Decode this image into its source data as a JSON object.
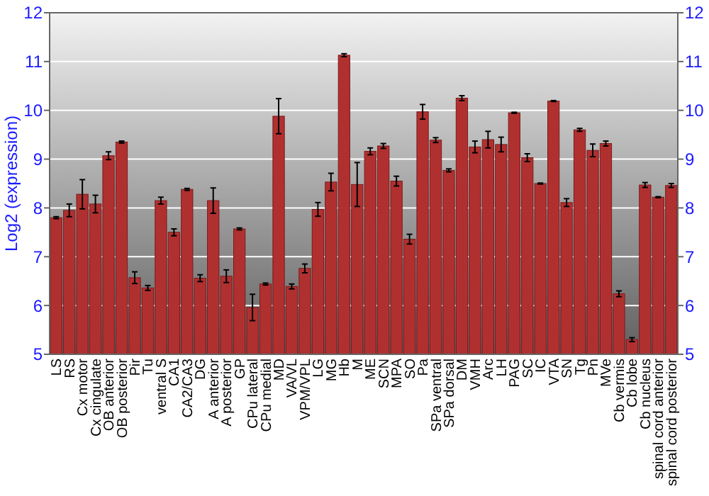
{
  "chart_data": {
    "type": "bar",
    "ylabel": "Log2 (expression)",
    "categories": [
      "LS",
      "RS",
      "Cx motor",
      "Cx cingulate",
      "OB anterior",
      "OB posterior",
      "Pir",
      "Tu",
      "ventral S",
      "CA1",
      "CA2/CA3",
      "DG",
      "A anterior",
      "A posterior",
      "GP",
      "CPu lateral",
      "CPu medial",
      "MD",
      "VA/VL",
      "VPM/VPL",
      "LG",
      "MG",
      "Hb",
      "M",
      "ME",
      "SCN",
      "MPA",
      "SO",
      "Pa",
      "SPa ventral",
      "SPa dorsal",
      "DM",
      "VMH",
      "Arc",
      "LH",
      "PAG",
      "SC",
      "IC",
      "VTA",
      "SN",
      "Tg",
      "Pn",
      "MVe",
      "Cb vermis",
      "Cb lobe",
      "Cb nucleus",
      "spinal cord anterior",
      "spinal cord posterior"
    ],
    "values": [
      7.8,
      7.95,
      8.28,
      8.08,
      9.07,
      9.35,
      6.57,
      6.36,
      8.15,
      7.5,
      8.38,
      6.56,
      8.15,
      6.6,
      7.57,
      5.96,
      6.44,
      9.88,
      6.39,
      6.76,
      7.97,
      8.53,
      11.13,
      8.48,
      9.16,
      9.27,
      8.55,
      7.36,
      9.97,
      9.39,
      8.77,
      10.25,
      9.25,
      9.4,
      9.3,
      9.95,
      9.03,
      8.5,
      10.19,
      8.11,
      9.6,
      9.18,
      9.32,
      6.24,
      5.3,
      8.47,
      8.22,
      8.46
    ],
    "errors": [
      0.02,
      0.13,
      0.3,
      0.18,
      0.08,
      0.02,
      0.12,
      0.05,
      0.07,
      0.07,
      0.02,
      0.07,
      0.26,
      0.13,
      0.02,
      0.27,
      0.02,
      0.36,
      0.05,
      0.09,
      0.14,
      0.18,
      0.03,
      0.45,
      0.07,
      0.05,
      0.1,
      0.1,
      0.15,
      0.05,
      0.03,
      0.05,
      0.12,
      0.17,
      0.15,
      0.01,
      0.08,
      0.01,
      0.01,
      0.08,
      0.03,
      0.13,
      0.05,
      0.06,
      0.04,
      0.05,
      0.01,
      0.04
    ],
    "color": "#b03030",
    "ylim": [
      5,
      12
    ],
    "yticks": [
      5,
      6,
      7,
      8,
      9,
      10,
      11,
      12
    ],
    "y2lim": [
      5,
      12
    ],
    "y2ticks": [
      5,
      6,
      7,
      8,
      9,
      10,
      11,
      12
    ],
    "grid": "y"
  }
}
